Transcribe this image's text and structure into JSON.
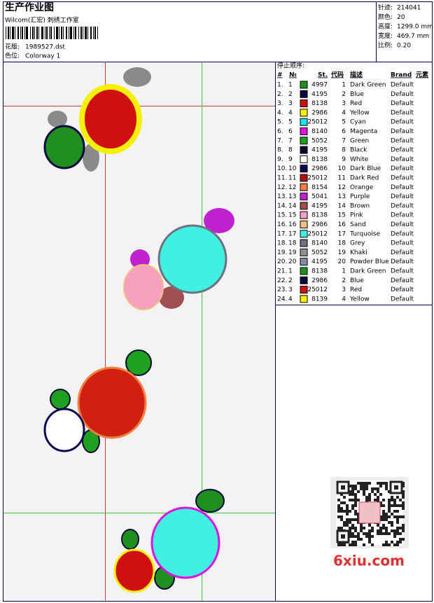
{
  "header": {
    "title": "生产作业图",
    "studio": "Wilcom(汇宏) 刺绣工作室",
    "design_label": "花版:",
    "design": "1989527.dst",
    "colorway_label": "色位:",
    "colorway": "Colorway 1"
  },
  "stats": [
    {
      "label": "针迹:",
      "value": "214041"
    },
    {
      "label": "颜色:",
      "value": "20"
    },
    {
      "label": "高度:",
      "value": "1299.0 mm"
    },
    {
      "label": "宽度:",
      "value": "469.7 mm"
    },
    {
      "label": "比例:",
      "value": "0.20"
    }
  ],
  "table": {
    "title": "停止顺序:",
    "columns": [
      "#",
      "№",
      "St.",
      "代码",
      "描述",
      "Brand",
      "元素"
    ],
    "rows": [
      {
        "stop": "1.",
        "no": "1",
        "color": "#1f8f1f",
        "code": "4997",
        "index": "1",
        "desc": "Dark Green",
        "brand": "Default"
      },
      {
        "stop": "2.",
        "no": "2",
        "color": "#0a0a40",
        "code": "4195",
        "index": "2",
        "desc": "Blue",
        "brand": "Default"
      },
      {
        "stop": "3.",
        "no": "3",
        "color": "#d01010",
        "code": "8138",
        "index": "3",
        "desc": "Red",
        "brand": "Default"
      },
      {
        "stop": "4.",
        "no": "4",
        "color": "#f5f000",
        "code": "2986",
        "index": "4",
        "desc": "Yellow",
        "brand": "Default"
      },
      {
        "stop": "5.",
        "no": "5",
        "color": "#20e0e8",
        "code": "25012",
        "index": "5",
        "desc": "Cyan",
        "brand": "Default"
      },
      {
        "stop": "6.",
        "no": "6",
        "color": "#e010e0",
        "code": "8140",
        "index": "6",
        "desc": "Magenta",
        "brand": "Default"
      },
      {
        "stop": "7.",
        "no": "7",
        "color": "#20a020",
        "code": "5052",
        "index": "7",
        "desc": "Green",
        "brand": "Default"
      },
      {
        "stop": "8.",
        "no": "8",
        "color": "#0a0a30",
        "code": "4195",
        "index": "8",
        "desc": "Black",
        "brand": "Default"
      },
      {
        "stop": "9.",
        "no": "9",
        "color": "#ffffff",
        "code": "8138",
        "index": "9",
        "desc": "White",
        "brand": "Default"
      },
      {
        "stop": "10.",
        "no": "10",
        "color": "#0a0a50",
        "code": "2986",
        "index": "10",
        "desc": "Dark Blue",
        "brand": "Default"
      },
      {
        "stop": "11.",
        "no": "11",
        "color": "#b01010",
        "code": "25012",
        "index": "11",
        "desc": "Dark Red",
        "brand": "Default"
      },
      {
        "stop": "12.",
        "no": "12",
        "color": "#f08040",
        "code": "8154",
        "index": "12",
        "desc": "Orange",
        "brand": "Default"
      },
      {
        "stop": "13.",
        "no": "13",
        "color": "#c020d0",
        "code": "5041",
        "index": "13",
        "desc": "Purple",
        "brand": "Default"
      },
      {
        "stop": "14.",
        "no": "14",
        "color": "#a05050",
        "code": "4195",
        "index": "14",
        "desc": "Brown",
        "brand": "Default"
      },
      {
        "stop": "15.",
        "no": "15",
        "color": "#f8a0c0",
        "code": "8138",
        "index": "15",
        "desc": "Pink",
        "brand": "Default"
      },
      {
        "stop": "16.",
        "no": "16",
        "color": "#f0c080",
        "code": "2986",
        "index": "16",
        "desc": "Sand",
        "brand": "Default"
      },
      {
        "stop": "17.",
        "no": "17",
        "color": "#40f0e0",
        "code": "25012",
        "index": "17",
        "desc": "Turquoise",
        "brand": "Default"
      },
      {
        "stop": "18.",
        "no": "18",
        "color": "#707080",
        "code": "8140",
        "index": "18",
        "desc": "Grey",
        "brand": "Default"
      },
      {
        "stop": "19.",
        "no": "19",
        "color": "#909090",
        "code": "5052",
        "index": "19",
        "desc": "Khaki",
        "brand": "Default"
      },
      {
        "stop": "20.",
        "no": "20",
        "color": "#8090a0",
        "code": "4195",
        "index": "20",
        "desc": "Powder Blue",
        "brand": "Default"
      },
      {
        "stop": "21.",
        "no": "1",
        "color": "#1f8f1f",
        "code": "8138",
        "index": "1",
        "desc": "Dark Green",
        "brand": "Default"
      },
      {
        "stop": "22.",
        "no": "2",
        "color": "#0a0a40",
        "code": "2986",
        "index": "2",
        "desc": "Blue",
        "brand": "Default"
      },
      {
        "stop": "23.",
        "no": "3",
        "color": "#d01010",
        "code": "25012",
        "index": "3",
        "desc": "Red",
        "brand": "Default"
      },
      {
        "stop": "24.",
        "no": "4",
        "color": "#f5f000",
        "code": "8139",
        "index": "4",
        "desc": "Yellow",
        "brand": "Default"
      }
    ]
  },
  "watermark": "6xiu.com"
}
